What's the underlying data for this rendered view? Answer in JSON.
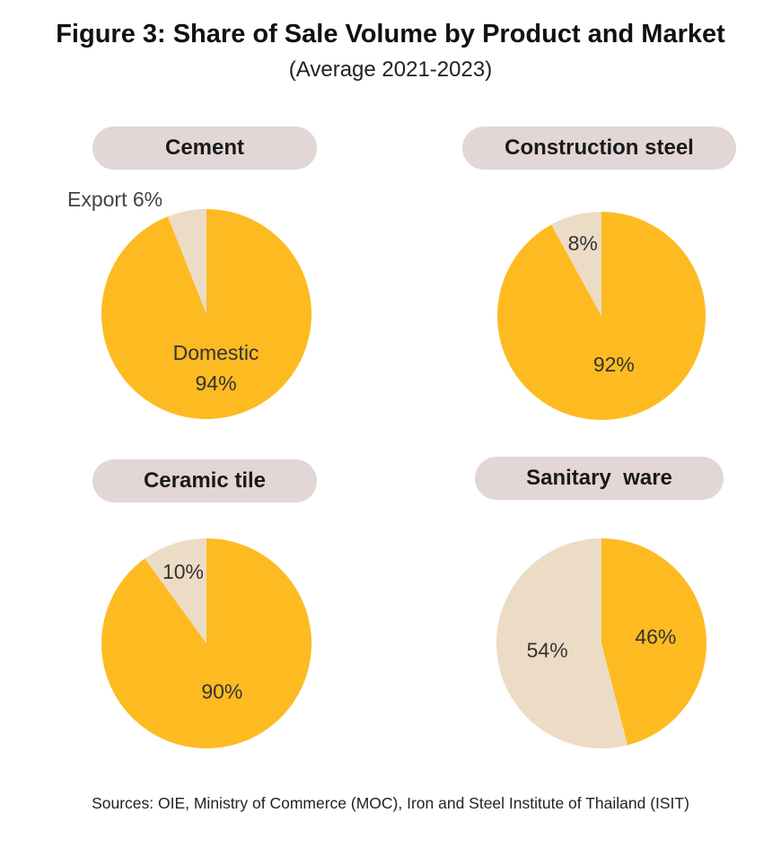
{
  "title": "Figure 3: Share of Sale Volume by Product and Market",
  "subtitle": "(Average 2021-2023)",
  "sources": "Sources: OIE, Ministry of Commerce (MOC), Iron and Steel Institute of Thailand (ISIT)",
  "colors": {
    "domestic": "#fdbb21",
    "export": "#ecdcc5",
    "pill": "#e3d6d6"
  },
  "chart_data": [
    {
      "type": "pie",
      "title": "Cement",
      "slices": [
        {
          "value": 94,
          "label_name": "Domestic",
          "label_pct": "94%"
        },
        {
          "value": 6,
          "label_name": "Export",
          "label_pct": "6%"
        }
      ],
      "export_label": "Export 6%"
    },
    {
      "type": "pie",
      "title": "Construction steel",
      "slices": [
        {
          "value": 92,
          "label_pct": "92%"
        },
        {
          "value": 8,
          "label_pct": "8%"
        }
      ]
    },
    {
      "type": "pie",
      "title": "Ceramic tile",
      "slices": [
        {
          "value": 90,
          "label_pct": "90%"
        },
        {
          "value": 10,
          "label_pct": "10%"
        }
      ]
    },
    {
      "type": "pie",
      "title": "Sanitary  ware",
      "slices": [
        {
          "value": 46,
          "label_pct": "46%"
        },
        {
          "value": 54,
          "label_pct": "54%"
        }
      ]
    }
  ]
}
